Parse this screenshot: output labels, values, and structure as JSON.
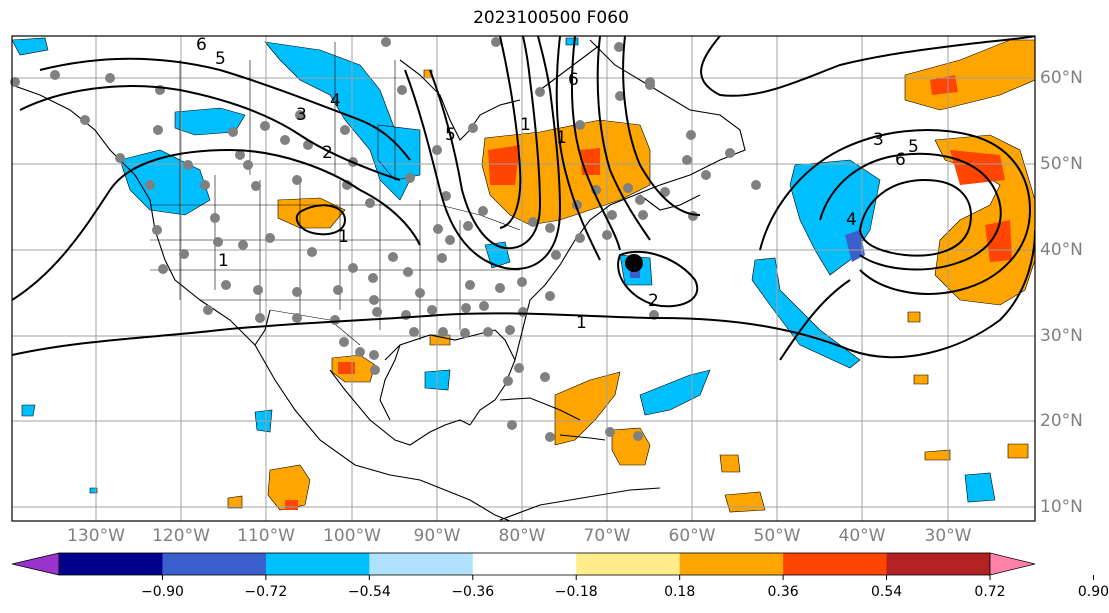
{
  "title": "2023100500 F060",
  "lon_labels": [
    "130°W",
    "120°W",
    "110°W",
    "100°W",
    "90°W",
    "80°W",
    "70°W",
    "60°W",
    "50°W",
    "40°W",
    "30°W"
  ],
  "lat_labels": [
    "60°N",
    "50°N",
    "40°N",
    "30°N",
    "20°N",
    "10°N"
  ],
  "colorbar": {
    "ticks": [
      "−0.90",
      "−0.72",
      "−0.54",
      "−0.36",
      "−0.18",
      "0.18",
      "0.36",
      "0.54",
      "0.72",
      "0.90"
    ],
    "colors": [
      "#9a32cd",
      "#00008b",
      "#3a5fcd",
      "#00bfff",
      "#b0e2ff",
      "#ffffff",
      "#ffec8b",
      "#ffa500",
      "#ff4500",
      "#b22222",
      "#ff82ab"
    ]
  },
  "contour_labels": [
    "6",
    "5",
    "4",
    "3",
    "2",
    "1",
    "1",
    "1",
    "1",
    "5",
    "6",
    "2",
    "1",
    "3",
    "6",
    "5",
    "4"
  ],
  "colors": {
    "positive_fill": "#ffa500",
    "strong_positive": "#ff4500",
    "negative_fill": "#00bfff",
    "strong_negative": "#3a5fcd",
    "station_dot": "#808080",
    "storm_center": "#000000"
  },
  "icons": {
    "station": "gray-station-dot",
    "storm": "black-storm-center-dot"
  }
}
